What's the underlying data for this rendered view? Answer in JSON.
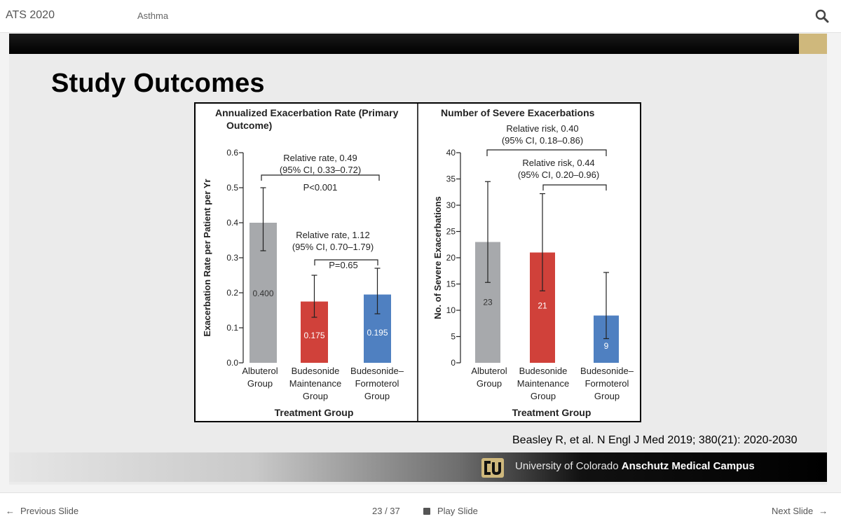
{
  "topbar": {
    "app_title": "ATS 2020",
    "section": "Asthma"
  },
  "slide": {
    "title": "Study Outcomes",
    "citation": "Beasley R, et al. N Engl J Med 2019; 380(21): 2020-2030",
    "footer": {
      "university_prefix": "University of Colorado ",
      "university_bold": "Anschutz Medical Campus"
    }
  },
  "bottombar": {
    "prev_label": "Previous Slide",
    "counter": "23 / 37",
    "play_label": "Play Slide",
    "next_label": "Next Slide"
  },
  "chart_data": [
    {
      "type": "bar",
      "title": "Annualized Exacerbation Rate (Primary Outcome)",
      "ylabel": "Exacerbation Rate per Patient per Yr",
      "xlabel": "Treatment Group",
      "ylim": [
        0,
        0.6
      ],
      "yticks": [
        "0.0",
        "0.1",
        "0.2",
        "0.3",
        "0.4",
        "0.5",
        "0.6"
      ],
      "categories": [
        [
          "Albuterol",
          "Group"
        ],
        [
          "Budesonide",
          "Maintenance",
          "Group"
        ],
        [
          "Budesonide–",
          "Formoterol",
          "Group"
        ]
      ],
      "values": [
        0.4,
        0.175,
        0.195
      ],
      "value_labels": [
        "0.400",
        "0.175",
        "0.195"
      ],
      "error_bars": [
        [
          0.32,
          0.5
        ],
        [
          0.13,
          0.25
        ],
        [
          0.14,
          0.27
        ]
      ],
      "colors": [
        "#a7a9ac",
        "#d0413a",
        "#4f80c1"
      ],
      "annotations": {
        "rel1": [
          "Relative rate, 0.49",
          "(95% CI, 0.33–0.72)",
          "P<0.001"
        ],
        "rel2": [
          "Relative rate, 1.12",
          "(95% CI, 0.70–1.79)",
          "P=0.65"
        ]
      }
    },
    {
      "type": "bar",
      "title": "Number of Severe Exacerbations",
      "ylabel": "No. of Severe Exacerbations",
      "xlabel": "Treatment Group",
      "ylim": [
        0,
        40
      ],
      "yticks": [
        "0",
        "5",
        "10",
        "15",
        "20",
        "25",
        "30",
        "35",
        "40"
      ],
      "categories": [
        [
          "Albuterol",
          "Group"
        ],
        [
          "Budesonide",
          "Maintenance",
          "Group"
        ],
        [
          "Budesonide–",
          "Formoterol",
          "Group"
        ]
      ],
      "values": [
        23,
        21,
        9
      ],
      "value_labels": [
        "23",
        "21",
        "9"
      ],
      "error_bars": [
        [
          15.3,
          34.5
        ],
        [
          13.7,
          32.2
        ],
        [
          4.6,
          17.2
        ]
      ],
      "colors": [
        "#a7a9ac",
        "#d0413a",
        "#4f80c1"
      ],
      "annotations": {
        "rel1": [
          "Relative risk, 0.40",
          "(95% CI, 0.18–0.86)"
        ],
        "rel2": [
          "Relative risk, 0.44",
          "(95% CI, 0.20–0.96)"
        ]
      }
    }
  ]
}
